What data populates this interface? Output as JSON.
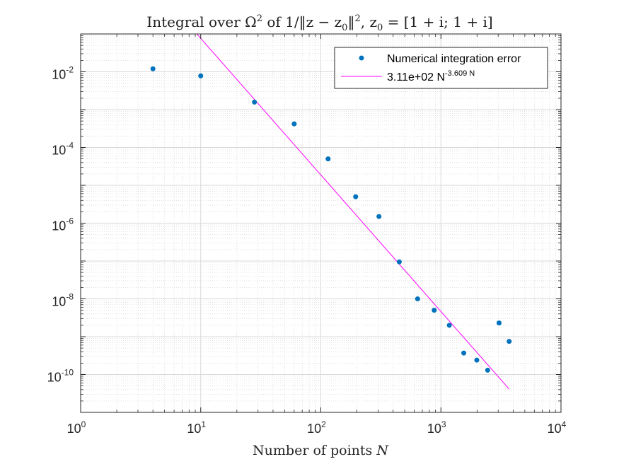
{
  "chart_data": {
    "type": "scatter",
    "title": {
      "prefix": "Integral over ",
      "omega": "Ω",
      "omega_exp": "2",
      "of": " of 1/‖z − z",
      "sub0": "0",
      "norm_close": "‖",
      "norm_exp": "2",
      "sep": ", z",
      "sub0b": "0",
      "tail": " = [1 + i; 1 + i]"
    },
    "xlabel": {
      "text": "Number of points ",
      "var": "N"
    },
    "ylabel": "",
    "xscale": "log",
    "yscale": "log",
    "xlim": [
      1,
      10000
    ],
    "ylim": [
      1e-11,
      0.1
    ],
    "grid": true,
    "minor_grid": true,
    "x_ticks": [
      {
        "value": 1,
        "base": "10",
        "exp": "0"
      },
      {
        "value": 10,
        "base": "10",
        "exp": "1"
      },
      {
        "value": 100,
        "base": "10",
        "exp": "2"
      },
      {
        "value": 1000,
        "base": "10",
        "exp": "3"
      },
      {
        "value": 10000,
        "base": "10",
        "exp": "4"
      }
    ],
    "y_ticks": [
      {
        "value": 1e-10,
        "base": "10",
        "exp": "-10"
      },
      {
        "value": 1e-08,
        "base": "10",
        "exp": "-8"
      },
      {
        "value": 1e-06,
        "base": "10",
        "exp": "-6"
      },
      {
        "value": 0.0001,
        "base": "10",
        "exp": "-4"
      },
      {
        "value": 0.01,
        "base": "10",
        "exp": "-2"
      }
    ],
    "series": [
      {
        "name": "Numerical integration error",
        "kind": "markers",
        "color": "#0072BD",
        "x": [
          4,
          10,
          28,
          60,
          115,
          195,
          305,
          450,
          640,
          880,
          1175,
          1550,
          1990,
          2450,
          3050,
          3700
        ],
        "y": [
          0.012,
          0.0078,
          0.00158,
          0.00042,
          5e-05,
          5e-06,
          1.5e-06,
          9.5e-08,
          1e-08,
          5e-09,
          2e-09,
          3.7e-10,
          2.4e-10,
          1.3e-10,
          2.3e-09,
          7.5e-10
        ]
      },
      {
        "name": "3.11e+02 N^-3.609 N",
        "kind": "line",
        "color": "#FF00FF",
        "coefficient": 311,
        "exponent": -3.609,
        "x_range": [
          8.5,
          3700
        ]
      }
    ],
    "legend": {
      "placement": "top-right",
      "entries": [
        {
          "text": "Numerical integration error"
        },
        {
          "text_main": "3.11e+02 N",
          "text_exp": "-3.609",
          "text_tail": " N"
        }
      ]
    }
  }
}
